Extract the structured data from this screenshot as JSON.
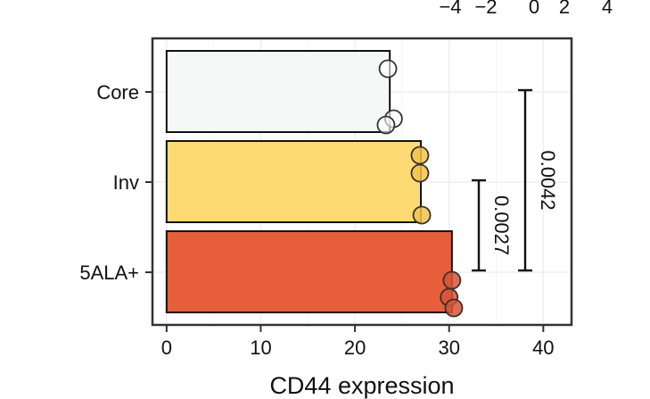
{
  "chart_data": {
    "type": "bar",
    "orientation": "horizontal",
    "categories": [
      "Core",
      "Inv",
      "5ALA+"
    ],
    "values": [
      23.7,
      27.0,
      30.3
    ],
    "points": [
      [
        23.5,
        24.1,
        23.3
      ],
      [
        26.9,
        26.9,
        27.1
      ],
      [
        30.3,
        30.0,
        30.5
      ]
    ],
    "colors": [
      "#f6f8f7",
      "#fedb72",
      "#e65f3a"
    ],
    "point_colors": [
      "#ffffff",
      "#f3c24a",
      "#d8543a"
    ],
    "xlabel": "CD44 expression",
    "ylabel": "",
    "xlim": [
      -1.5,
      43
    ],
    "xticks": [
      "0",
      "10",
      "20",
      "30",
      "40"
    ],
    "grid": true,
    "legend_scale": {
      "ticks": [
        "−4",
        "−2",
        "0",
        "2",
        "4"
      ],
      "position": "top-right"
    },
    "comparisons": [
      {
        "from": "Inv",
        "to": "5ALA+",
        "p_value": "0.0027"
      },
      {
        "from": "Core",
        "to": "5ALA+",
        "p_value": "0.0042"
      }
    ]
  }
}
